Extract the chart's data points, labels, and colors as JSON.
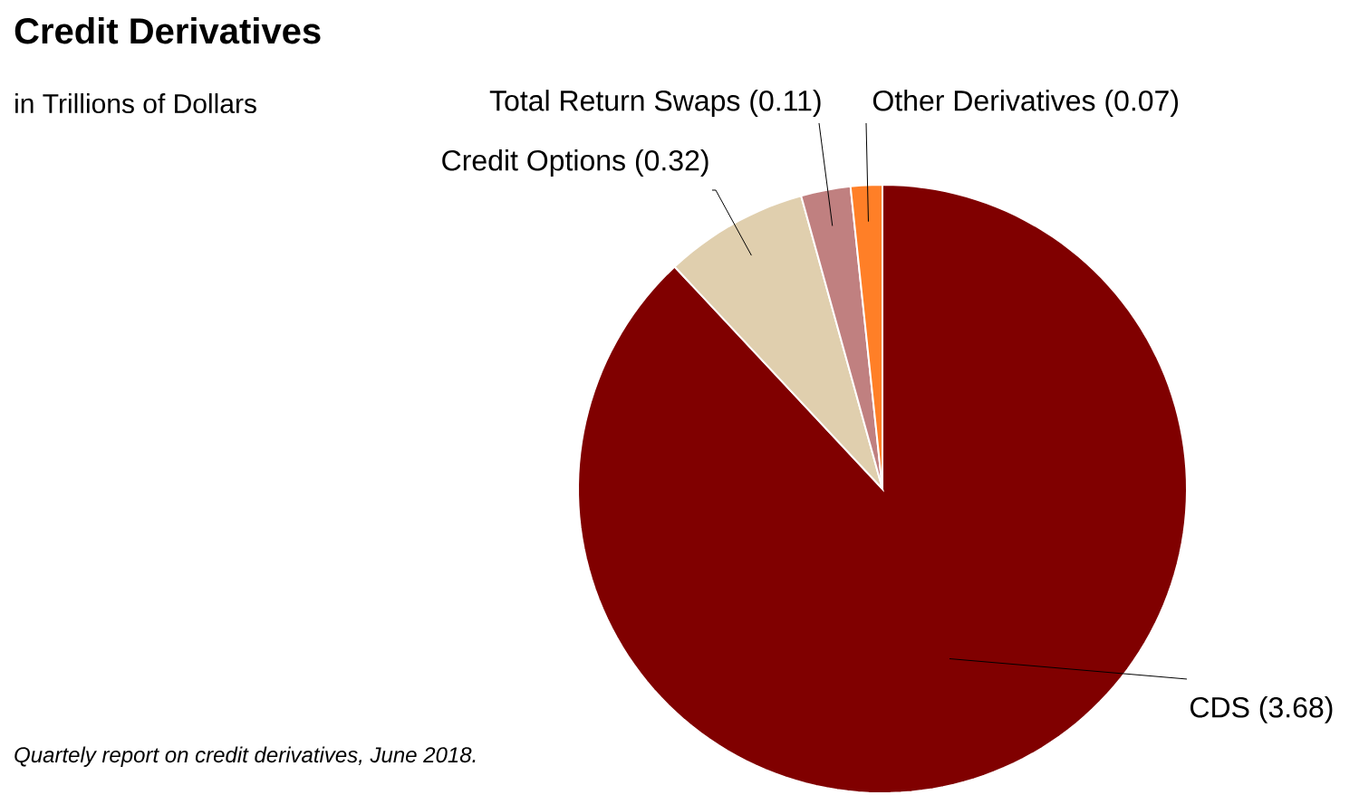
{
  "chart_data": {
    "type": "pie",
    "title": "Credit Derivatives",
    "subtitle": "in Trillions of Dollars",
    "categories": [
      "CDS (3.68)",
      "Credit Options (0.32)",
      "Total Return Swaps (0.11)",
      "Other Derivatives (0.07)"
    ],
    "values": [
      3.68,
      0.32,
      0.11,
      0.07
    ],
    "colors": [
      "#800000",
      "#e0cfae",
      "#c08080",
      "#ff7f27"
    ],
    "annotations": [
      "Quartely report on credit derivatives, June 2018."
    ]
  }
}
